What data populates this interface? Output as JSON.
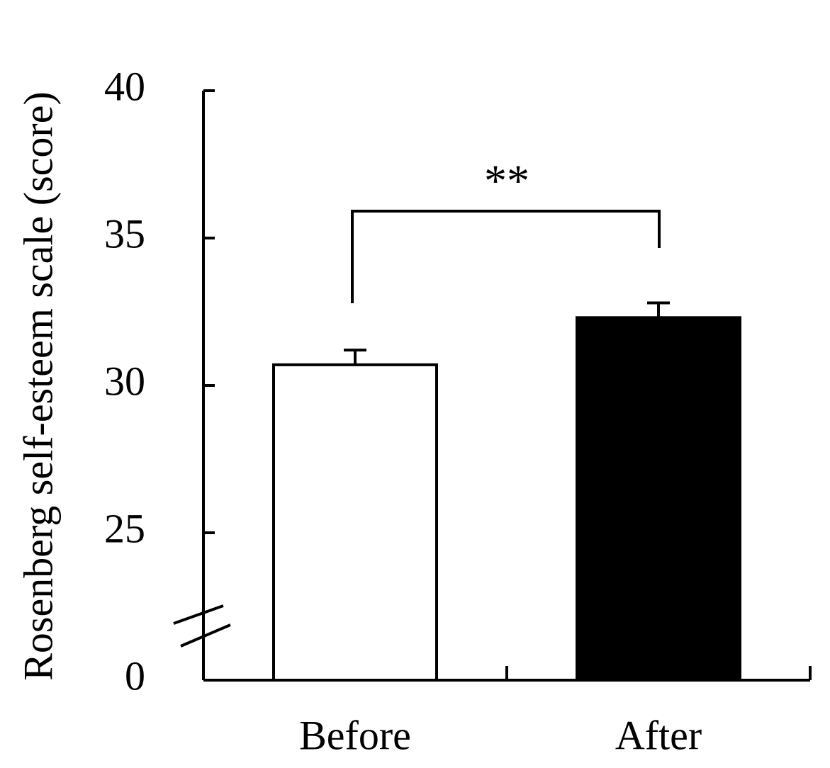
{
  "chart_data": {
    "type": "bar",
    "y_label": "Rosenberg self-esteem scale (score)",
    "categories": [
      "Before",
      "After"
    ],
    "values": [
      30.7,
      32.3
    ],
    "errors": [
      0.5,
      0.5
    ],
    "colors": [
      "#ffffff",
      "#000000"
    ],
    "ylim": [
      0,
      40
    ],
    "yticks": [
      0,
      25,
      30,
      35,
      40
    ],
    "y_break": true,
    "annotation": "**"
  }
}
